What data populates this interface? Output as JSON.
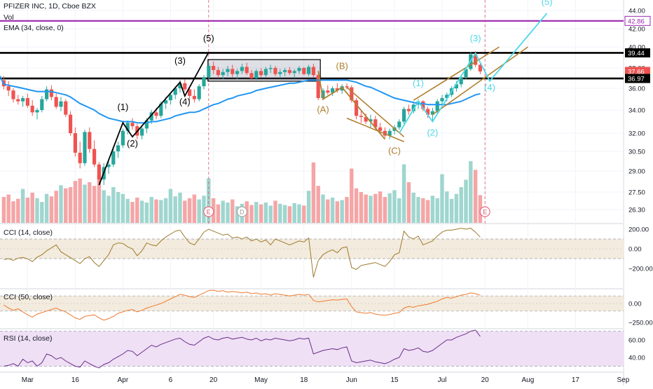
{
  "header": {
    "symbol_line": "PFIZER INC, 1D, Cboe BZX",
    "vol_label": "Vol",
    "ema_label": "EMA (34, close, 0)"
  },
  "colors": {
    "up": "#26a69a",
    "down": "#ef5350",
    "vol_up": "#9fd6cf",
    "vol_down": "#f5a5a6",
    "ema": "#2196f3",
    "wave_black": "#000000",
    "wave_brown": "#b08030",
    "wave_cyan": "#4dd9e8",
    "purple_line": "#9c27b0",
    "cci14": "#9d7a2c",
    "cci50": "#f07a30",
    "rsi": "#6a2d8a",
    "band_cci": "#f3ebdd",
    "band_rsi": "#efe0f5",
    "event_red": "#e0556a",
    "event_grey": "#9c9c9c"
  },
  "chart_data": [
    {
      "type": "candlestick",
      "title": "PFIZER INC, 1D, Cboe BZX",
      "x_labels": [
        "Mar",
        "16",
        "Apr",
        "6",
        "20",
        "May",
        "18",
        "Jun",
        "15",
        "Jul",
        "20",
        "Aug",
        "17",
        "Sep"
      ],
      "y_ticks": [
        "44.00",
        "42.00",
        "40.00",
        "38.00",
        "36.00",
        "34.00",
        "32.00",
        "30.50",
        "29.00",
        "27.50",
        "26.30"
      ],
      "price_tags": [
        {
          "label": "42.86",
          "value": 42.86,
          "style": "outline"
        },
        {
          "label": "39.44",
          "value": 39.44,
          "style": "dark"
        },
        {
          "label": "37.66",
          "value": 37.66,
          "style": "red"
        },
        {
          "label": "36.97",
          "value": 36.97,
          "style": "dark"
        }
      ],
      "horizontal_levels": [
        39.44,
        36.97,
        42.86
      ],
      "ohlc": [
        [
          36.8,
          37.2,
          35.9,
          36.2
        ],
        [
          36.2,
          36.7,
          35.3,
          35.8
        ],
        [
          35.8,
          36.0,
          34.7,
          35.0
        ],
        [
          35.0,
          35.4,
          34.5,
          34.8
        ],
        [
          34.8,
          35.3,
          34.3,
          35.1
        ],
        [
          35.1,
          35.5,
          34.2,
          34.4
        ],
        [
          34.4,
          34.9,
          33.5,
          33.8
        ],
        [
          33.8,
          34.2,
          33.2,
          34.0
        ],
        [
          34.0,
          35.3,
          33.8,
          35.0
        ],
        [
          35.0,
          36.2,
          34.8,
          35.9
        ],
        [
          35.9,
          36.3,
          34.9,
          35.2
        ],
        [
          35.2,
          35.5,
          34.1,
          34.3
        ],
        [
          34.3,
          35.2,
          33.9,
          34.8
        ],
        [
          34.8,
          35.0,
          33.4,
          33.6
        ],
        [
          33.6,
          33.9,
          31.8,
          32.0
        ],
        [
          32.0,
          32.5,
          30.1,
          30.4
        ],
        [
          30.4,
          31.3,
          29.2,
          29.6
        ],
        [
          29.6,
          32.3,
          29.4,
          32.1
        ],
        [
          32.1,
          32.5,
          30.4,
          30.7
        ],
        [
          30.7,
          31.4,
          29.3,
          29.5
        ],
        [
          29.5,
          29.7,
          28.1,
          28.4
        ],
        [
          28.4,
          29.6,
          28.0,
          29.3
        ],
        [
          29.3,
          29.8,
          28.8,
          29.5
        ],
        [
          29.5,
          30.7,
          29.3,
          30.5
        ],
        [
          30.5,
          31.3,
          30.0,
          31.0
        ],
        [
          31.0,
          32.4,
          30.8,
          32.2
        ],
        [
          32.2,
          33.1,
          31.9,
          32.9
        ],
        [
          32.9,
          33.3,
          32.3,
          32.6
        ],
        [
          32.6,
          32.8,
          31.5,
          31.8
        ],
        [
          31.8,
          32.6,
          31.5,
          32.4
        ],
        [
          32.4,
          33.3,
          32.0,
          33.1
        ],
        [
          33.1,
          34.0,
          32.8,
          33.8
        ],
        [
          33.8,
          34.2,
          33.2,
          33.5
        ],
        [
          33.5,
          34.8,
          33.3,
          34.6
        ],
        [
          34.6,
          35.2,
          34.1,
          34.9
        ],
        [
          34.9,
          35.6,
          34.5,
          35.4
        ],
        [
          35.4,
          36.2,
          35.0,
          36.0
        ],
        [
          36.0,
          36.8,
          35.6,
          36.5
        ],
        [
          36.5,
          36.9,
          35.7,
          35.9
        ],
        [
          35.9,
          36.0,
          34.9,
          35.3
        ],
        [
          35.3,
          35.9,
          34.7,
          35.0
        ],
        [
          35.0,
          36.4,
          34.8,
          36.2
        ],
        [
          36.2,
          37.3,
          35.9,
          37.1
        ],
        [
          37.1,
          38.5,
          36.9,
          38.2
        ],
        [
          38.2,
          38.6,
          37.4,
          37.8
        ],
        [
          37.8,
          38.1,
          37.0,
          37.3
        ],
        [
          37.3,
          37.9,
          36.9,
          37.6
        ],
        [
          37.6,
          38.2,
          37.2,
          37.9
        ],
        [
          37.9,
          38.3,
          37.1,
          37.4
        ],
        [
          37.4,
          37.9,
          36.9,
          37.7
        ],
        [
          37.7,
          38.4,
          37.4,
          38.1
        ],
        [
          38.1,
          38.5,
          37.3,
          37.5
        ],
        [
          37.5,
          37.8,
          36.7,
          37.0
        ],
        [
          37.0,
          37.9,
          36.8,
          37.7
        ],
        [
          37.7,
          38.0,
          37.1,
          37.3
        ],
        [
          37.3,
          38.1,
          37.1,
          37.9
        ],
        [
          37.9,
          38.3,
          37.5,
          38.0
        ],
        [
          38.0,
          38.2,
          37.2,
          37.4
        ],
        [
          37.4,
          37.9,
          37.0,
          37.6
        ],
        [
          37.6,
          38.0,
          37.2,
          37.8
        ],
        [
          37.8,
          38.1,
          37.3,
          37.5
        ],
        [
          37.5,
          37.9,
          37.0,
          37.7
        ],
        [
          37.7,
          38.2,
          37.4,
          38.0
        ],
        [
          38.0,
          38.1,
          37.3,
          37.4
        ],
        [
          37.4,
          38.3,
          37.2,
          38.1
        ],
        [
          38.1,
          38.4,
          37.1,
          37.3
        ],
        [
          37.3,
          37.4,
          34.9,
          35.1
        ],
        [
          35.1,
          36.0,
          34.9,
          35.8
        ],
        [
          35.8,
          36.3,
          35.4,
          35.6
        ],
        [
          35.6,
          36.2,
          35.3,
          36.0
        ],
        [
          36.0,
          36.5,
          35.6,
          35.8
        ],
        [
          35.8,
          36.4,
          35.5,
          36.2
        ],
        [
          36.2,
          36.5,
          35.9,
          36.1
        ],
        [
          36.1,
          36.3,
          34.7,
          34.9
        ],
        [
          34.9,
          35.1,
          33.2,
          33.5
        ],
        [
          33.5,
          33.9,
          32.9,
          33.4
        ],
        [
          33.4,
          33.7,
          32.8,
          33.0
        ],
        [
          33.0,
          33.6,
          32.5,
          33.2
        ],
        [
          33.2,
          33.5,
          32.3,
          32.5
        ],
        [
          32.5,
          32.9,
          31.9,
          32.2
        ],
        [
          32.2,
          32.5,
          31.6,
          31.8
        ],
        [
          31.8,
          32.4,
          31.5,
          32.2
        ],
        [
          32.2,
          32.7,
          31.9,
          32.5
        ],
        [
          32.5,
          33.2,
          32.3,
          33.0
        ],
        [
          33.0,
          34.3,
          32.8,
          34.1
        ],
        [
          34.1,
          34.5,
          33.6,
          33.9
        ],
        [
          33.9,
          34.7,
          33.7,
          34.5
        ],
        [
          34.5,
          35.0,
          34.1,
          34.8
        ],
        [
          34.8,
          34.9,
          33.9,
          34.1
        ],
        [
          34.1,
          34.3,
          33.3,
          33.6
        ],
        [
          33.6,
          34.2,
          33.1,
          33.9
        ],
        [
          33.9,
          35.0,
          33.7,
          34.8
        ],
        [
          34.8,
          35.4,
          34.5,
          35.1
        ],
        [
          35.1,
          35.6,
          34.8,
          35.4
        ],
        [
          35.4,
          36.2,
          35.2,
          36.0
        ],
        [
          36.0,
          36.7,
          35.7,
          36.4
        ],
        [
          36.4,
          37.3,
          36.1,
          37.1
        ],
        [
          37.1,
          38.1,
          36.9,
          37.9
        ],
        [
          37.9,
          39.5,
          37.7,
          39.3
        ],
        [
          39.3,
          39.6,
          38.1,
          38.3
        ],
        [
          38.3,
          38.4,
          37.4,
          37.66
        ]
      ],
      "volume_relative": [
        0.42,
        0.46,
        0.35,
        0.39,
        0.55,
        0.41,
        0.49,
        0.4,
        0.34,
        0.47,
        0.43,
        0.52,
        0.61,
        0.56,
        0.58,
        0.68,
        0.72,
        0.62,
        0.66,
        0.6,
        0.78,
        0.53,
        0.44,
        0.58,
        0.5,
        0.47,
        0.39,
        0.34,
        0.41,
        0.36,
        0.33,
        0.42,
        0.38,
        0.37,
        0.4,
        0.55,
        0.43,
        0.49,
        0.36,
        0.4,
        0.46,
        0.38,
        0.44,
        0.72,
        0.4,
        0.3,
        0.36,
        0.33,
        0.38,
        0.27,
        0.31,
        0.35,
        0.29,
        0.34,
        0.3,
        0.33,
        0.28,
        0.36,
        0.31,
        0.29,
        0.27,
        0.32,
        0.3,
        0.28,
        0.52,
        0.98,
        0.6,
        0.46,
        0.38,
        0.41,
        0.35,
        0.37,
        0.42,
        0.88,
        0.56,
        0.5,
        0.46,
        0.44,
        0.47,
        0.51,
        0.42,
        0.48,
        0.53,
        0.4,
        0.95,
        0.66,
        0.49,
        0.42,
        0.4,
        0.37,
        0.44,
        0.4,
        0.79,
        0.51,
        0.39,
        0.47,
        0.58,
        0.7,
        1.0,
        0.86,
        0.45
      ],
      "ema34": [
        36.4,
        36.3,
        36.2,
        36.1,
        36.0,
        35.9,
        35.8,
        35.7,
        35.7,
        35.7,
        35.7,
        35.6,
        35.5,
        35.4,
        35.2,
        34.9,
        34.6,
        34.4,
        34.2,
        34.0,
        33.7,
        33.5,
        33.3,
        33.2,
        33.1,
        33.0,
        33.0,
        33.0,
        32.9,
        32.9,
        32.9,
        33.0,
        33.0,
        33.1,
        33.2,
        33.3,
        33.5,
        33.6,
        33.7,
        33.8,
        33.8,
        33.9,
        34.1,
        34.3,
        34.5,
        34.6,
        34.8,
        35.0,
        35.1,
        35.3,
        35.4,
        35.5,
        35.6,
        35.8,
        35.9,
        36.0,
        36.1,
        36.2,
        36.3,
        36.4,
        36.5,
        36.5,
        36.6,
        36.7,
        36.8,
        36.8,
        36.8,
        36.8,
        36.8,
        36.8,
        36.8,
        36.8,
        36.8,
        36.7,
        36.6,
        36.4,
        36.2,
        36.1,
        35.9,
        35.7,
        35.5,
        35.3,
        35.1,
        35.0,
        34.9,
        34.8,
        34.7,
        34.6,
        34.6,
        34.5,
        34.5,
        34.5,
        34.5,
        34.5,
        34.6,
        34.7,
        34.8,
        35.0,
        35.2,
        35.4,
        35.5
      ],
      "annotations": {
        "wave_labels": [
          {
            "text": "(1)",
            "color": "black"
          },
          {
            "text": "(2)",
            "color": "black"
          },
          {
            "text": "(3)",
            "color": "black"
          },
          {
            "text": "(4)",
            "color": "black"
          },
          {
            "text": "(5)",
            "color": "black"
          },
          {
            "text": "(A)",
            "color": "brown"
          },
          {
            "text": "(B)",
            "color": "brown"
          },
          {
            "text": "(C)",
            "color": "brown"
          },
          {
            "text": "(1)",
            "color": "cyan"
          },
          {
            "text": "(2)",
            "color": "cyan"
          },
          {
            "text": "(3)",
            "color": "cyan"
          },
          {
            "text": "(4)",
            "color": "cyan"
          },
          {
            "text": "(5)",
            "color": "cyan"
          }
        ],
        "event_markers": [
          "E",
          "D",
          "E"
        ]
      }
    },
    {
      "type": "line",
      "title": "CCI (14, close)",
      "y_ticks": [
        "200.00",
        "0.00",
        "−200.00"
      ],
      "band": [
        -100,
        100
      ],
      "values": [
        -110,
        -100,
        -118,
        -95,
        -88,
        -102,
        -130,
        -85,
        -60,
        -20,
        10,
        40,
        -30,
        -60,
        -90,
        -120,
        -150,
        -100,
        -80,
        -140,
        -180,
        -120,
        -60,
        40,
        60,
        55,
        20,
        0,
        -70,
        -20,
        60,
        40,
        30,
        80,
        120,
        150,
        180,
        190,
        120,
        60,
        40,
        100,
        170,
        200,
        180,
        160,
        140,
        150,
        110,
        120,
        100,
        120,
        80,
        100,
        70,
        90,
        40,
        100,
        80,
        60,
        40,
        60,
        80,
        70,
        110,
        -290,
        -120,
        -60,
        -30,
        -10,
        -40,
        10,
        20,
        -190,
        -210,
        -170,
        -160,
        -150,
        -140,
        -160,
        -180,
        -130,
        -60,
        -40,
        180,
        120,
        100,
        130,
        40,
        60,
        80,
        130,
        170,
        190,
        190,
        200,
        210,
        200,
        210,
        170,
        120
      ]
    },
    {
      "type": "line",
      "title": "CCI (50, close)",
      "y_ticks": [
        "0.00",
        "−250.00"
      ],
      "band": [
        -100,
        100
      ],
      "values": [
        -20,
        -60,
        -90,
        -70,
        -110,
        -150,
        -180,
        -140,
        -120,
        -100,
        -80,
        -60,
        -90,
        -110,
        -150,
        -190,
        -210,
        -170,
        -160,
        -150,
        -190,
        -220,
        -200,
        -170,
        -130,
        -110,
        -90,
        -80,
        -110,
        -90,
        -60,
        -40,
        -20,
        0,
        30,
        60,
        90,
        120,
        110,
        90,
        80,
        110,
        140,
        170,
        180,
        160,
        170,
        150,
        160,
        150,
        140,
        150,
        130,
        140,
        120,
        130,
        110,
        130,
        120,
        110,
        100,
        110,
        120,
        110,
        120,
        40,
        20,
        30,
        40,
        50,
        45,
        55,
        60,
        -40,
        -110,
        -120,
        -130,
        -120,
        -140,
        -150,
        -155,
        -145,
        -130,
        -120,
        -60,
        -40,
        -50,
        -30,
        -20,
        -10,
        10,
        30,
        60,
        80,
        70,
        90,
        110,
        120,
        140,
        130,
        110
      ]
    },
    {
      "type": "line",
      "title": "RSI (14, close)",
      "y_ticks": [
        "60.00",
        "40.00"
      ],
      "band": [
        30,
        70
      ],
      "values": [
        30,
        31,
        33,
        30,
        38,
        34,
        36,
        30,
        34,
        44,
        42,
        38,
        40,
        36,
        33,
        30,
        29,
        36,
        33,
        30,
        28,
        32,
        34,
        38,
        41,
        44,
        48,
        47,
        42,
        46,
        50,
        54,
        52,
        55,
        57,
        59,
        61,
        62,
        58,
        55,
        54,
        58,
        62,
        64,
        61,
        60,
        62,
        63,
        61,
        62,
        63,
        61,
        60,
        62,
        59,
        61,
        60,
        62,
        61,
        60,
        59,
        60,
        62,
        61,
        62,
        44,
        46,
        48,
        49,
        50,
        49,
        51,
        52,
        36,
        34,
        35,
        36,
        37,
        35,
        34,
        33,
        35,
        38,
        40,
        50,
        48,
        49,
        51,
        47,
        46,
        48,
        52,
        56,
        60,
        60,
        63,
        65,
        67,
        70,
        72,
        64
      ]
    }
  ]
}
